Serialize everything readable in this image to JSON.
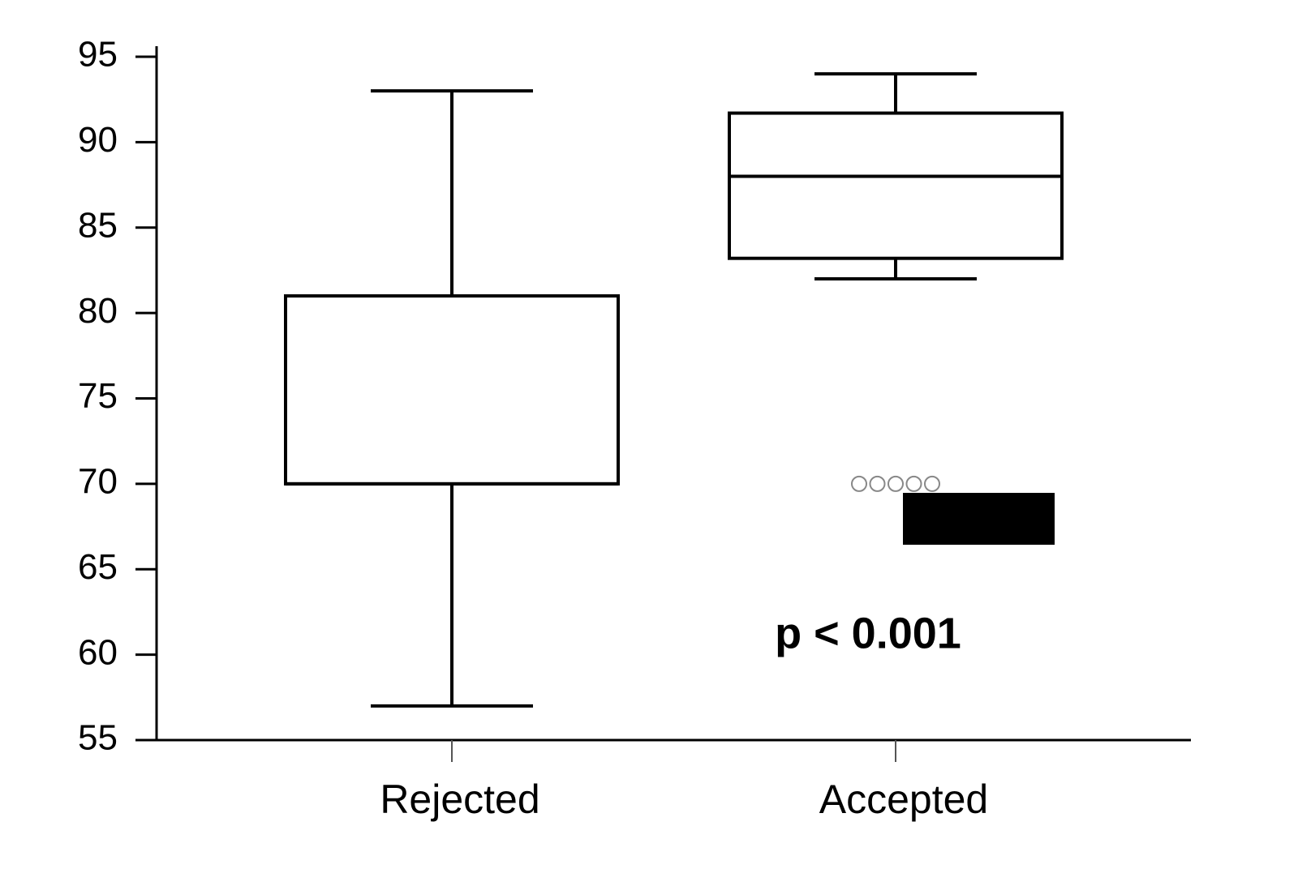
{
  "chart_data": {
    "type": "box",
    "categories": [
      "Rejected",
      "Accepted"
    ],
    "boxes": [
      {
        "min": 57,
        "q1": 70,
        "median": 70,
        "q3": 81,
        "max": 93,
        "outliers": []
      },
      {
        "min": 82,
        "q1": 83.2,
        "median": 88,
        "q3": 91.7,
        "max": 94,
        "outliers": [
          70,
          70,
          70,
          70,
          70
        ]
      }
    ],
    "ylim": [
      55,
      95
    ],
    "yticks": [
      55,
      60,
      65,
      70,
      75,
      80,
      85,
      90,
      95
    ],
    "annotation": "p < 0.001",
    "color": "#000000",
    "outlier_color": "#888888"
  }
}
